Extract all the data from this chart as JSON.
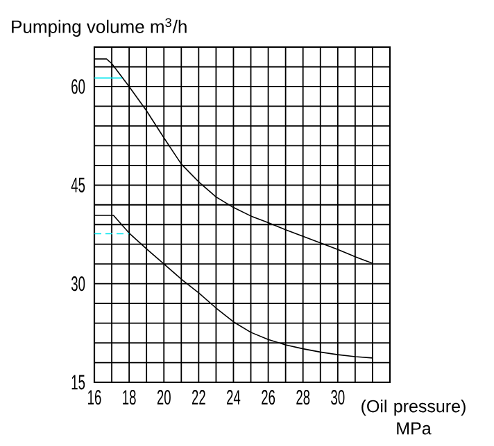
{
  "chart_data": {
    "type": "line",
    "ylabel": "Pumping volume m$^{3}$/h",
    "xlabel": "(Oil pressure) MPa",
    "xlim": [
      16,
      33
    ],
    "ylim": [
      15,
      66
    ],
    "xticks": [
      16,
      {
        "value": 17,
        "label": null
      },
      18,
      {
        "value": 19,
        "label": null
      },
      20,
      {
        "value": 21,
        "label": null
      },
      22,
      {
        "value": 23,
        "label": null
      },
      24,
      {
        "value": 25,
        "label": null
      },
      26,
      {
        "value": 27,
        "label": null
      },
      28,
      {
        "value": 29,
        "label": null
      },
      30,
      {
        "value": 31,
        "label": null
      },
      {
        "value": 32,
        "label": null
      },
      {
        "value": 33,
        "label": null
      }
    ],
    "yticks": [
      15,
      {
        "value": 18,
        "label": null
      },
      {
        "value": 21,
        "label": null
      },
      {
        "value": 24,
        "label": null
      },
      {
        "value": 27,
        "label": null
      },
      30,
      {
        "value": 33,
        "label": null
      },
      {
        "value": 36,
        "label": null
      },
      {
        "value": 39,
        "label": null
      },
      {
        "value": 42,
        "label": null
      },
      45,
      {
        "value": 48,
        "label": null
      },
      {
        "value": 51,
        "label": null
      },
      {
        "value": 54,
        "label": null
      },
      {
        "value": 57,
        "label": null
      },
      60,
      {
        "value": 63,
        "label": null
      },
      {
        "value": 66,
        "label": null
      }
    ],
    "grid": true,
    "marker": "none",
    "series": [
      {
        "color": "#000000",
        "line_style": "solid",
        "x": [
          16,
          16.7,
          17,
          18,
          19,
          20,
          21,
          22,
          23,
          24,
          25,
          26,
          27,
          28,
          29,
          30,
          31,
          32
        ],
        "values": [
          64.2,
          64.2,
          63.5,
          60,
          56.3,
          52.2,
          48.2,
          45.5,
          43.2,
          41.6,
          40.3,
          39.3,
          38.2,
          37.2,
          36.2,
          35.2,
          34.1,
          33.1
        ]
      },
      {
        "color": "#000000",
        "line_style": "solid",
        "x": [
          16,
          17.1,
          18,
          19,
          20,
          21,
          22,
          23,
          24,
          25,
          26,
          27,
          28,
          29,
          30,
          31,
          32
        ],
        "values": [
          40.4,
          40.4,
          37.7,
          35.3,
          33.0,
          30.7,
          28.6,
          26.3,
          24.2,
          22.6,
          21.5,
          20.7,
          20.1,
          19.6,
          19.2,
          18.9,
          18.7
        ]
      },
      {
        "color": "#00e5ee",
        "line_style": "solid",
        "x": [
          16,
          17.6
        ],
        "values": [
          61.3,
          61.3
        ]
      },
      {
        "color": "#00e5ee",
        "line_style": "dashed",
        "x": [
          16,
          18
        ],
        "values": [
          37.6,
          37.6
        ]
      }
    ]
  }
}
